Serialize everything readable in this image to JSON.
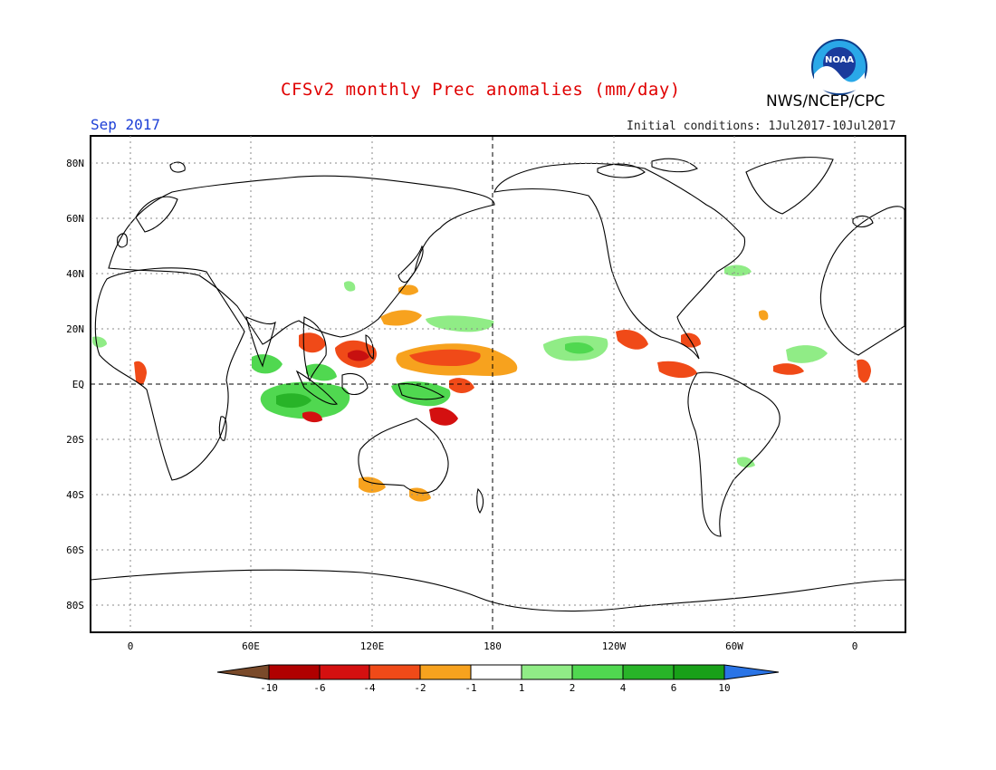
{
  "header": {
    "title": "CFSv2 monthly Prec anomalies (mm/day)",
    "org": "NWS/NCEP/CPC",
    "logo_text": "NOAA",
    "month": "Sep 2017",
    "init_conditions": "Initial conditions: 1Jul2017-10Jul2017"
  },
  "axes": {
    "lat_labels": [
      "80N",
      "60N",
      "40N",
      "20N",
      "EQ",
      "20S",
      "40S",
      "60S",
      "80S"
    ],
    "lon_labels": [
      "0",
      "60E",
      "120E",
      "180",
      "120W",
      "60W",
      "0"
    ]
  },
  "colorbar": {
    "tick_labels": [
      "-10",
      "-6",
      "-4",
      "-2",
      "-1",
      "1",
      "2",
      "4",
      "6",
      "10"
    ],
    "colors": [
      "#7a4a2a",
      "#b00000",
      "#d41010",
      "#f04a18",
      "#f7a21e",
      "#ffffff",
      "#90ec86",
      "#50d850",
      "#28b428",
      "#18a018",
      "#2a74e6"
    ]
  },
  "colors": {
    "title": "#e00000",
    "month": "#1c3fd6",
    "dry_moderate": "#f7a21e",
    "dry_strong": "#f04a18",
    "dry_extreme": "#c81010",
    "wet_light": "#90ec86",
    "wet_moderate": "#50d850",
    "wet_strong": "#28b428"
  }
}
